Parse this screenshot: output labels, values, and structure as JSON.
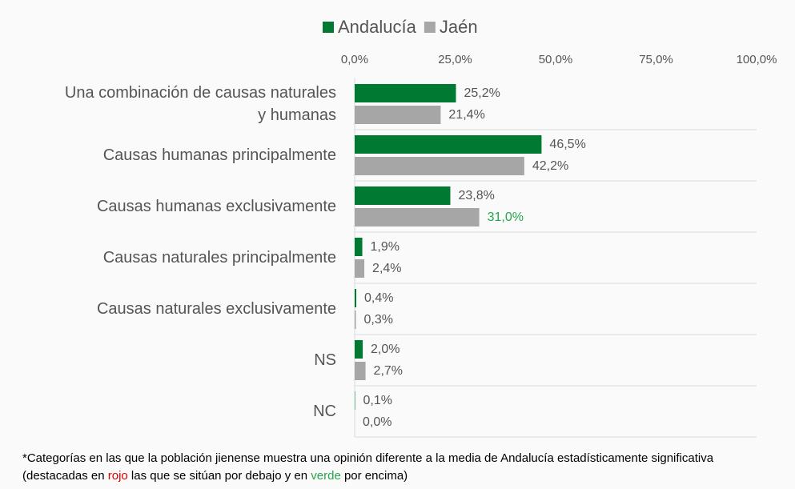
{
  "chart_data": {
    "type": "bar",
    "orientation": "horizontal",
    "categories": [
      "Una combinación de causas naturales y humanas",
      "Causas humanas principalmente",
      "Causas humanas exclusivamente",
      "Causas naturales principalmente",
      "Causas naturales exclusivamente",
      "NS",
      "NC"
    ],
    "series": [
      {
        "name": "Andalucía",
        "color": "#007a33",
        "values": [
          25.2,
          46.5,
          23.8,
          1.9,
          0.4,
          2.0,
          0.1
        ],
        "value_labels": [
          "25,2%",
          "46,5%",
          "23,8%",
          "1,9%",
          "0,4%",
          "2,0%",
          "0,1%"
        ]
      },
      {
        "name": "Jaén",
        "color": "#a6a6a6",
        "values": [
          21.4,
          42.2,
          31.0,
          2.4,
          0.3,
          2.7,
          0.0
        ],
        "value_labels": [
          "21,4%",
          "42,2%",
          "31,0%",
          "2,4%",
          "0,3%",
          "2,7%",
          "0,0%"
        ]
      }
    ],
    "highlights": [
      {
        "series": "Jaén",
        "category": "Causas humanas exclusivamente",
        "color": "#22a84a"
      }
    ],
    "xlim": [
      0,
      100
    ],
    "xticks": [
      {
        "value": 0,
        "label": "0,0%"
      },
      {
        "value": 25,
        "label": "25,0%"
      },
      {
        "value": 50,
        "label": "50,0%"
      },
      {
        "value": 75,
        "label": "75,0%"
      },
      {
        "value": 100,
        "label": "100,0%"
      }
    ],
    "legend": "top",
    "footnote": [
      {
        "text": "*Categorías en las que la población jienense muestra una opinión diferente a la media de Andalucía estadísticamente significativa (destacadas en "
      },
      {
        "text": "rojo",
        "color": "#e00000"
      },
      {
        "text": " las que se sitúan por debajo y en "
      },
      {
        "text": "verde",
        "color": "#22a84a"
      },
      {
        "text": " por encima)"
      }
    ]
  }
}
